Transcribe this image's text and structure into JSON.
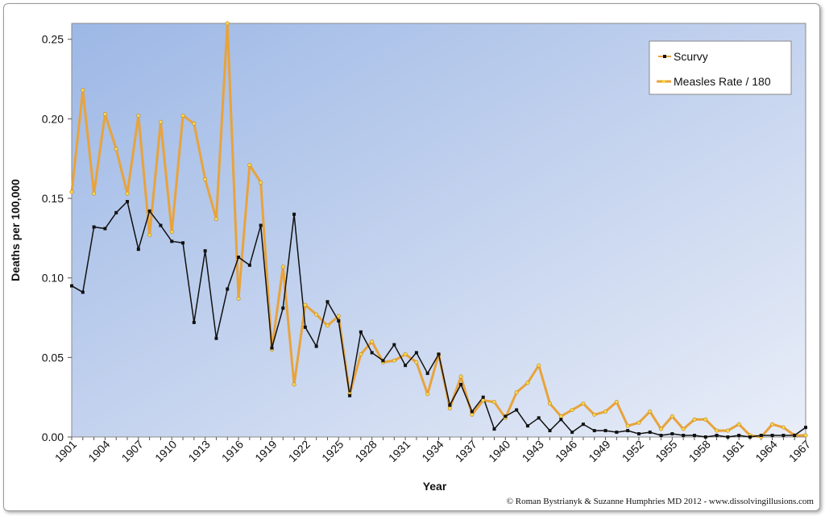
{
  "chart_data": {
    "type": "line",
    "xlabel": "Year",
    "ylabel": "Deaths per 100,000",
    "xlim": [
      1901,
      1967
    ],
    "ylim": [
      0,
      0.26
    ],
    "yticks": [
      "0.00",
      "0.05",
      "0.10",
      "0.15",
      "0.20",
      "0.25"
    ],
    "xticks": [
      "1901",
      "1904",
      "1907",
      "1910",
      "1913",
      "1916",
      "1919",
      "1922",
      "1925",
      "1928",
      "1931",
      "1934",
      "1937",
      "1940",
      "1943",
      "1946",
      "1949",
      "1952",
      "1955",
      "1958",
      "1961",
      "1964",
      "1967"
    ],
    "legend_position": "top-right",
    "grid": false,
    "credit": "© Roman Bystrianyk & Suzanne Humphries MD 2012 - www.dissolvingillusions.com",
    "x": [
      1901,
      1902,
      1903,
      1904,
      1905,
      1906,
      1907,
      1908,
      1909,
      1910,
      1911,
      1912,
      1913,
      1914,
      1915,
      1916,
      1917,
      1918,
      1919,
      1920,
      1921,
      1922,
      1923,
      1924,
      1925,
      1926,
      1927,
      1928,
      1929,
      1930,
      1931,
      1932,
      1933,
      1934,
      1935,
      1936,
      1937,
      1938,
      1939,
      1940,
      1941,
      1942,
      1943,
      1944,
      1945,
      1946,
      1947,
      1948,
      1949,
      1950,
      1951,
      1952,
      1953,
      1954,
      1955,
      1956,
      1957,
      1958,
      1959,
      1960,
      1961,
      1962,
      1963,
      1964,
      1965,
      1966,
      1967
    ],
    "series": [
      {
        "name": "Scurvy",
        "color": "#111111",
        "marker_color": "#111111",
        "values": [
          0.095,
          0.091,
          0.132,
          0.131,
          0.141,
          0.148,
          0.118,
          0.142,
          0.133,
          0.123,
          0.122,
          0.072,
          0.117,
          0.062,
          0.093,
          0.113,
          0.108,
          0.133,
          0.056,
          0.081,
          0.14,
          0.069,
          0.057,
          0.085,
          0.073,
          0.026,
          0.066,
          0.053,
          0.048,
          0.058,
          0.045,
          0.053,
          0.04,
          0.052,
          0.02,
          0.033,
          0.016,
          0.025,
          0.005,
          0.013,
          0.017,
          0.007,
          0.012,
          0.004,
          0.011,
          0.003,
          0.008,
          0.004,
          0.004,
          0.003,
          0.004,
          0.002,
          0.003,
          0.001,
          0.002,
          0.001,
          0.001,
          0.0,
          0.001,
          0.0,
          0.001,
          0.0,
          0.001,
          0.001,
          0.001,
          0.001,
          0.006
        ]
      },
      {
        "name": "Measles Rate / 180",
        "color": "#e8a33c",
        "marker_color": "#f6d94f",
        "values": [
          0.154,
          0.218,
          0.153,
          0.203,
          0.181,
          0.153,
          0.202,
          0.127,
          0.198,
          0.129,
          0.202,
          0.197,
          0.162,
          0.137,
          0.26,
          0.087,
          0.171,
          0.16,
          0.055,
          0.107,
          0.033,
          0.083,
          0.077,
          0.07,
          0.076,
          0.027,
          0.052,
          0.06,
          0.047,
          0.048,
          0.052,
          0.047,
          0.027,
          0.052,
          0.018,
          0.038,
          0.014,
          0.023,
          0.022,
          0.012,
          0.028,
          0.034,
          0.045,
          0.021,
          0.013,
          0.017,
          0.021,
          0.014,
          0.016,
          0.022,
          0.007,
          0.009,
          0.016,
          0.005,
          0.013,
          0.005,
          0.011,
          0.011,
          0.004,
          0.004,
          0.008,
          0.001,
          0.0,
          0.008,
          0.006,
          0.001,
          0.001
        ]
      }
    ]
  }
}
